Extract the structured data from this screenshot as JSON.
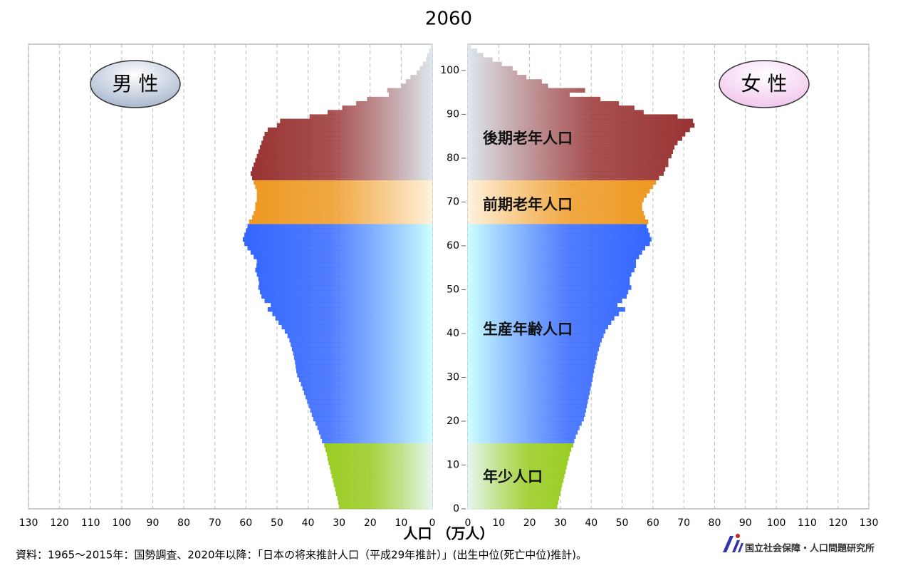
{
  "chart_data": {
    "type": "pyramid",
    "title": "2060",
    "xlabel": "人口 （万人）",
    "note": "資料：1965～2015年：国勢調査、2020年以降：「日本の将来推計人口（平成29年推計）」(出生中位(死亡中位)推計)。",
    "source": "国立社会保障・人口問題研究所",
    "xlim": [
      0,
      130
    ],
    "xticks": [
      0,
      10,
      20,
      30,
      40,
      50,
      60,
      70,
      80,
      90,
      100,
      110,
      120,
      130
    ],
    "ylim": [
      0,
      106
    ],
    "yticks": [
      0,
      10,
      20,
      30,
      40,
      50,
      60,
      70,
      80,
      90,
      100
    ],
    "grid": true,
    "ages": [
      0,
      1,
      2,
      3,
      4,
      5,
      6,
      7,
      8,
      9,
      10,
      11,
      12,
      13,
      14,
      15,
      16,
      17,
      18,
      19,
      20,
      21,
      22,
      23,
      24,
      25,
      26,
      27,
      28,
      29,
      30,
      31,
      32,
      33,
      34,
      35,
      36,
      37,
      38,
      39,
      40,
      41,
      42,
      43,
      44,
      45,
      46,
      47,
      48,
      49,
      50,
      51,
      52,
      53,
      54,
      55,
      56,
      57,
      58,
      59,
      60,
      61,
      62,
      63,
      64,
      65,
      66,
      67,
      68,
      69,
      70,
      71,
      72,
      73,
      74,
      75,
      76,
      77,
      78,
      79,
      80,
      81,
      82,
      83,
      84,
      85,
      86,
      87,
      88,
      89,
      90,
      91,
      92,
      93,
      94,
      95,
      96,
      97,
      98,
      99,
      100,
      101,
      102,
      103,
      104,
      105
    ],
    "groups": [
      {
        "label": "年少人口",
        "ages": [
          0,
          14
        ],
        "color": "#99cc22",
        "light": "#e8f6f0"
      },
      {
        "label": "生産年齢人口",
        "ages": [
          15,
          64
        ],
        "color": "#3366ff",
        "light": "#ccffff"
      },
      {
        "label": "前期老年人口",
        "ages": [
          65,
          74
        ],
        "color": "#ee9922",
        "light": "#fff2dd"
      },
      {
        "label": "後期老年人口",
        "ages": [
          75,
          105
        ],
        "color": "#993333",
        "light": "#dde8ee"
      }
    ],
    "series": [
      {
        "name": "男 性",
        "side": "left",
        "color": "#a9b8d0",
        "values": [
          30,
          30.3,
          30.6,
          31,
          31.3,
          31.7,
          32,
          32.4,
          32.7,
          33,
          33.4,
          33.7,
          34,
          34.4,
          34.8,
          35.5,
          36,
          36.5,
          37,
          37.6,
          38.3,
          38.8,
          39.3,
          39.8,
          40.3,
          40.8,
          41.3,
          41.8,
          42.3,
          42.9,
          43.5,
          43.8,
          44,
          44.2,
          44.5,
          44.8,
          45.2,
          45.6,
          46,
          46.6,
          47.5,
          48.5,
          49.5,
          50.5,
          51.5,
          53,
          52,
          54,
          55,
          55.5,
          56,
          55.8,
          56,
          56.5,
          57,
          56.6,
          56.5,
          57.5,
          58.5,
          59.5,
          60.5,
          61,
          60.5,
          60,
          59.5,
          59,
          58,
          57.5,
          57,
          57,
          56.5,
          56.5,
          56.5,
          57,
          57.5,
          58,
          58.5,
          58,
          57.5,
          57,
          56.5,
          56,
          55.5,
          55,
          54.5,
          54,
          53,
          50,
          49,
          39.5,
          33.7,
          29,
          24.5,
          21,
          14,
          14.5,
          10,
          8.5,
          7,
          5,
          4,
          3,
          2,
          1.6,
          1,
          0.5
        ]
      },
      {
        "name": "女 性",
        "side": "right",
        "color": "#f2c6ee",
        "values": [
          29,
          29.3,
          29.6,
          30,
          30.3,
          30.6,
          31,
          31.3,
          31.7,
          32,
          32.3,
          32.7,
          33,
          33.5,
          34.2,
          34.5,
          35,
          35.6,
          36.2,
          36.9,
          37.6,
          38,
          38.3,
          38.6,
          38.9,
          39.2,
          39.5,
          39.8,
          40.1,
          40.4,
          40.6,
          40.9,
          41.2,
          41.5,
          41.8,
          42.1,
          42.5,
          42.9,
          43.4,
          44,
          44.6,
          45.5,
          46.5,
          47.5,
          49,
          51,
          48.5,
          50,
          51.5,
          52,
          53,
          52.5,
          52.5,
          53,
          54,
          54.5,
          54.5,
          55.5,
          56.5,
          57.5,
          59,
          59.5,
          59,
          58.5,
          58,
          58.5,
          57.5,
          57,
          56.5,
          56.5,
          57,
          58,
          59,
          60,
          61,
          62,
          63.5,
          64,
          65,
          65,
          66,
          66.5,
          67,
          68,
          69.5,
          70.5,
          72,
          73.5,
          73,
          68,
          57,
          54,
          49,
          43,
          33,
          38,
          26,
          24,
          19,
          16,
          14.5,
          11,
          8,
          5,
          3,
          1
        ]
      }
    ]
  }
}
